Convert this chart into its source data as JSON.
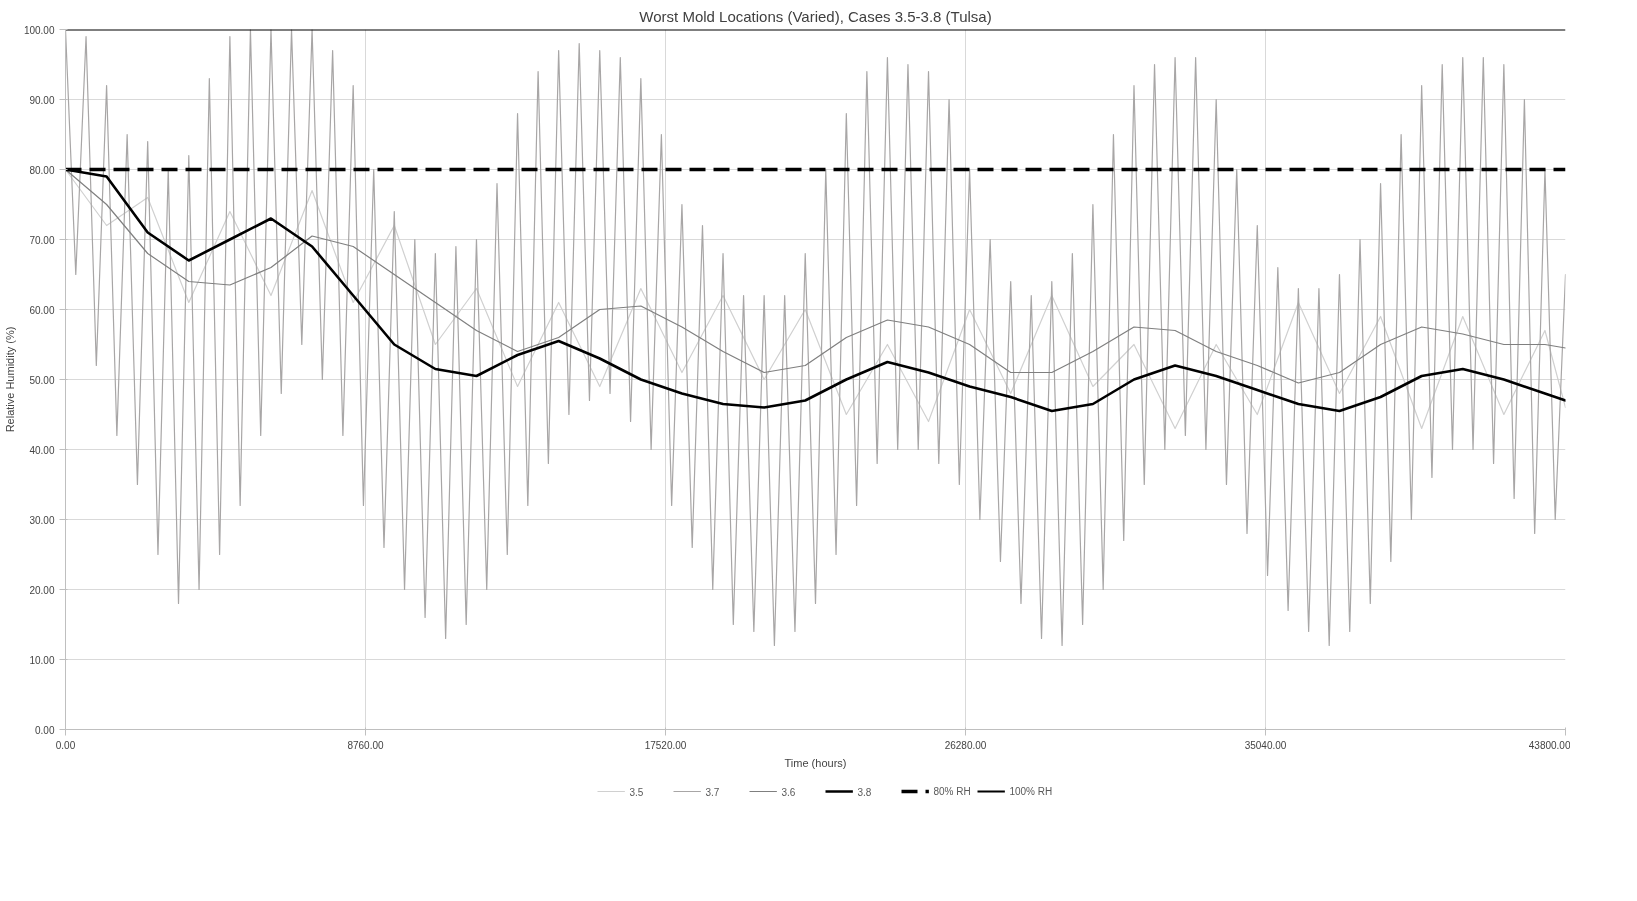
{
  "chart_data": {
    "type": "line",
    "title": "Worst Mold Locations (Varied), Cases 3.5-3.8 (Tulsa)",
    "xlabel": "Time (hours)",
    "ylabel": "Relative Humidity (%)",
    "xlim": [
      0,
      43800
    ],
    "ylim": [
      0,
      100
    ],
    "xticks": [
      {
        "value": 0,
        "label": "0.00"
      },
      {
        "value": 8760,
        "label": "8760.00"
      },
      {
        "value": 17520,
        "label": "17520.00"
      },
      {
        "value": 26280,
        "label": "26280.00"
      },
      {
        "value": 35040,
        "label": "35040.00"
      },
      {
        "value": 43800,
        "label": "43800.00"
      }
    ],
    "yticks": [
      {
        "value": 0,
        "label": "0.00"
      },
      {
        "value": 10,
        "label": "10.00"
      },
      {
        "value": 20,
        "label": "20.00"
      },
      {
        "value": 30,
        "label": "30.00"
      },
      {
        "value": 40,
        "label": "40.00"
      },
      {
        "value": 50,
        "label": "50.00"
      },
      {
        "value": 60,
        "label": "60.00"
      },
      {
        "value": 70,
        "label": "70.00"
      },
      {
        "value": 80,
        "label": "80.00"
      },
      {
        "value": 90,
        "label": "90.00"
      },
      {
        "value": 100,
        "label": "100.00"
      }
    ],
    "grid": true,
    "legend": "bottom",
    "series": [
      {
        "name": "3.5",
        "color": "#d0d0d0",
        "x": [
          0,
          1200,
          2400,
          3600,
          4800,
          6000,
          7200,
          8400,
          9600,
          10800,
          12000,
          13200,
          14400,
          15600,
          16800,
          18000,
          19200,
          20400,
          21600,
          22800,
          24000,
          25200,
          26400,
          27600,
          28800,
          30000,
          31200,
          32400,
          33600,
          34800,
          36000,
          37200,
          38400,
          39600,
          40800,
          42000,
          43200,
          43800
        ],
        "values": [
          80,
          72,
          76,
          61,
          74,
          62,
          77,
          61,
          72,
          55,
          63,
          49,
          61,
          49,
          63,
          51,
          62,
          50,
          60,
          45,
          55,
          44,
          60,
          48,
          62,
          49,
          55,
          43,
          55,
          45,
          61,
          48,
          59,
          43,
          59,
          45,
          57,
          46
        ]
      },
      {
        "name": "3.7",
        "color": "#a8a6a6",
        "x": [
          0,
          300,
          600,
          900,
          1200,
          1500,
          1800,
          2100,
          2400,
          2700,
          3000,
          3300,
          3600,
          3900,
          4200,
          4500,
          4800,
          5100,
          5400,
          5700,
          6000,
          6300,
          6600,
          6900,
          7200,
          7500,
          7800,
          8100,
          8400,
          8700,
          9000,
          9300,
          9600,
          9900,
          10200,
          10500,
          10800,
          11100,
          11400,
          11700,
          12000,
          12300,
          12600,
          12900,
          13200,
          13500,
          13800,
          14100,
          14400,
          14700,
          15000,
          15300,
          15600,
          15900,
          16200,
          16500,
          16800,
          17100,
          17400,
          17700,
          18000,
          18300,
          18600,
          18900,
          19200,
          19500,
          19800,
          20100,
          20400,
          20700,
          21000,
          21300,
          21600,
          21900,
          22200,
          22500,
          22800,
          23100,
          23400,
          23700,
          24000,
          24300,
          24600,
          24900,
          25200,
          25500,
          25800,
          26100,
          26400,
          26700,
          27000,
          27300,
          27600,
          27900,
          28200,
          28500,
          28800,
          29100,
          29400,
          29700,
          30000,
          30300,
          30600,
          30900,
          31200,
          31500,
          31800,
          32100,
          32400,
          32700,
          33000,
          33300,
          33600,
          33900,
          34200,
          34500,
          34800,
          35100,
          35400,
          35700,
          36000,
          36300,
          36600,
          36900,
          37200,
          37500,
          37800,
          38100,
          38400,
          38700,
          39000,
          39300,
          39600,
          39900,
          40200,
          40500,
          40800,
          41100,
          41400,
          41700,
          42000,
          42300,
          42600,
          42900,
          43200,
          43500,
          43800
        ],
        "values": [
          100,
          65,
          99,
          52,
          92,
          42,
          85,
          35,
          84,
          25,
          80,
          18,
          82,
          20,
          93,
          25,
          99,
          32,
          100,
          42,
          100,
          48,
          100,
          55,
          100,
          50,
          97,
          42,
          92,
          32,
          80,
          26,
          74,
          20,
          70,
          16,
          68,
          13,
          69,
          15,
          70,
          20,
          78,
          25,
          88,
          32,
          94,
          38,
          97,
          45,
          98,
          47,
          97,
          48,
          96,
          44,
          93,
          40,
          85,
          32,
          75,
          26,
          72,
          20,
          68,
          15,
          62,
          14,
          62,
          12,
          62,
          14,
          68,
          18,
          80,
          25,
          88,
          32,
          94,
          38,
          96,
          40,
          95,
          40,
          94,
          38,
          90,
          35,
          80,
          30,
          70,
          24,
          64,
          18,
          62,
          13,
          64,
          12,
          68,
          15,
          75,
          20,
          85,
          27,
          92,
          35,
          95,
          40,
          96,
          42,
          96,
          40,
          90,
          35,
          80,
          28,
          72,
          22,
          66,
          17,
          63,
          14,
          63,
          12,
          65,
          14,
          70,
          18,
          78,
          24,
          85,
          30,
          92,
          36,
          95,
          40,
          96,
          40,
          96,
          38,
          95,
          33,
          90,
          28,
          80,
          30,
          65
        ]
      },
      {
        "name": "3.6",
        "color": "#7f7f7f",
        "x": [
          0,
          1200,
          2400,
          3600,
          4800,
          6000,
          7200,
          8400,
          9600,
          10800,
          12000,
          13200,
          14400,
          15600,
          16800,
          18000,
          19200,
          20400,
          21600,
          22800,
          24000,
          25200,
          26400,
          27600,
          28800,
          30000,
          31200,
          32400,
          33600,
          34800,
          36000,
          37200,
          38400,
          39600,
          40800,
          42000,
          43200,
          43800
        ],
        "values": [
          80,
          75,
          68,
          64,
          63.5,
          66,
          70.5,
          69,
          65,
          61,
          57,
          54,
          56,
          60,
          60.5,
          57.5,
          54,
          51,
          52,
          56,
          58.5,
          57.5,
          55,
          51,
          51,
          54,
          57.5,
          57,
          54,
          52,
          49.5,
          51,
          55,
          57.5,
          56.5,
          55,
          55,
          54.5
        ]
      },
      {
        "name": "3.8",
        "color": "#000000",
        "x": [
          0,
          1200,
          2400,
          3600,
          4800,
          6000,
          7200,
          8400,
          9600,
          10800,
          12000,
          13200,
          14400,
          15600,
          16800,
          18000,
          19200,
          20400,
          21600,
          22800,
          24000,
          25200,
          26400,
          27600,
          28800,
          30000,
          31200,
          32400,
          33600,
          34800,
          36000,
          37200,
          38400,
          39600,
          40800,
          42000,
          43200,
          43800
        ],
        "values": [
          80,
          79,
          71,
          67,
          70,
          73,
          69,
          62,
          55,
          51.5,
          50.5,
          53.5,
          55.5,
          53,
          50,
          48,
          46.5,
          46,
          47,
          50,
          52.5,
          51,
          49,
          47.5,
          45.5,
          46.5,
          50,
          52,
          50.5,
          48.5,
          46.5,
          45.5,
          47.5,
          50.5,
          51.5,
          50,
          48,
          47
        ]
      }
    ],
    "ref_lines": [
      {
        "axis": "y",
        "value": 80,
        "label": "80% RH",
        "color": "#000000",
        "line_style": "dashed"
      },
      {
        "axis": "y",
        "value": 100,
        "label": "100% RH",
        "color": "#000000",
        "line_style": "solid"
      }
    ]
  }
}
